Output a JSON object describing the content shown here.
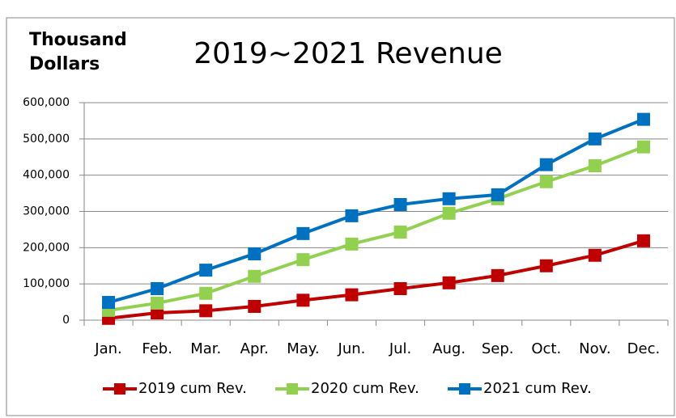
{
  "chart_data": {
    "type": "line",
    "title": "2019~2021 Revenue",
    "y_axis_label": "Thousand Dollars",
    "categories": [
      "Jan.",
      "Feb.",
      "Mar.",
      "Apr.",
      "May.",
      "Jun.",
      "Jul.",
      "Aug.",
      "Sep.",
      "Oct.",
      "Nov.",
      "Dec."
    ],
    "series": [
      {
        "name": "2019 cum Rev.",
        "color": "#c00000",
        "values": [
          5000,
          20000,
          26000,
          38000,
          55000,
          70000,
          87000,
          103000,
          123000,
          150000,
          179000,
          219000
        ]
      },
      {
        "name": "2020 cum Rev.",
        "color": "#92d050",
        "values": [
          27000,
          47000,
          74000,
          121000,
          167000,
          210000,
          243000,
          295000,
          335000,
          382000,
          426000,
          478000
        ]
      },
      {
        "name": "2021 cum Rev.",
        "color": "#0070c0",
        "values": [
          49000,
          87000,
          138000,
          183000,
          239000,
          288000,
          319000,
          335000,
          346000,
          429000,
          500000,
          554000
        ]
      }
    ],
    "ylim": [
      0,
      600000
    ],
    "yticks": [
      0,
      {
        "value": 100000,
        "label": "100,000"
      },
      {
        "value": 200000,
        "label": "200,000"
      },
      {
        "value": 300000,
        "label": "300,000"
      },
      {
        "value": 400000,
        "label": "400,000"
      },
      {
        "value": 500000,
        "label": "500,000"
      },
      {
        "value": 600000,
        "label": "600,000"
      }
    ],
    "grid": true,
    "legend": "bottom"
  }
}
